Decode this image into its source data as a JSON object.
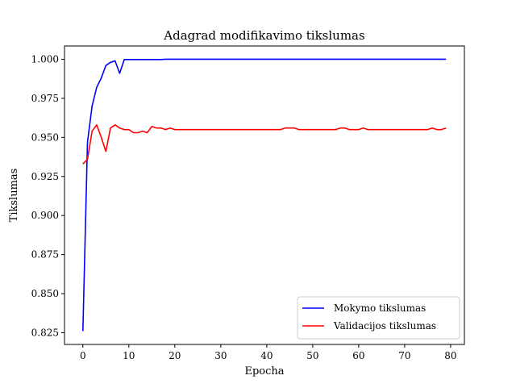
{
  "chart_data": {
    "type": "line",
    "title": "Adagrad modifikavimo tikslumas",
    "xlabel": "Epocha",
    "ylabel": "Tikslumas",
    "xlim": [
      -4,
      83
    ],
    "ylim": [
      0.8175,
      1.0085
    ],
    "xticks": [
      0,
      10,
      20,
      30,
      40,
      50,
      60,
      70,
      80
    ],
    "yticks": [
      0.825,
      0.85,
      0.875,
      0.9,
      0.925,
      0.95,
      0.975,
      1.0
    ],
    "ytick_labels": [
      "0.825",
      "0.850",
      "0.875",
      "0.900",
      "0.925",
      "0.950",
      "0.975",
      "1.000"
    ],
    "legend_position": "lower right",
    "grid": false,
    "series": [
      {
        "name": "Mokymo tikslumas",
        "color": "#0000ff",
        "x": [
          0,
          1,
          2,
          3,
          4,
          5,
          6,
          7,
          8,
          9,
          10,
          11,
          12,
          13,
          14,
          15,
          16,
          17,
          18,
          19,
          20,
          21,
          22,
          23,
          24,
          25,
          26,
          27,
          28,
          29,
          30,
          31,
          32,
          33,
          34,
          35,
          36,
          37,
          38,
          39,
          40,
          41,
          42,
          43,
          44,
          45,
          46,
          47,
          48,
          49,
          50,
          51,
          52,
          53,
          54,
          55,
          56,
          57,
          58,
          59,
          60,
          61,
          62,
          63,
          64,
          65,
          66,
          67,
          68,
          69,
          70,
          71,
          72,
          73,
          74,
          75,
          76,
          77,
          78,
          79
        ],
        "y": [
          0.826,
          0.947,
          0.97,
          0.982,
          0.988,
          0.996,
          0.998,
          0.999,
          0.991,
          0.9998,
          0.9998,
          0.9998,
          0.9998,
          0.9998,
          0.9998,
          0.9998,
          0.9998,
          0.9998,
          1.0,
          1.0,
          1.0,
          1.0,
          1.0,
          1.0,
          1.0,
          1.0,
          1.0,
          1.0,
          1.0,
          1.0,
          1.0,
          1.0,
          1.0,
          1.0,
          1.0,
          1.0,
          1.0,
          1.0,
          1.0,
          1.0,
          1.0,
          1.0,
          1.0,
          1.0,
          1.0,
          1.0,
          1.0,
          1.0,
          1.0,
          1.0,
          1.0,
          1.0,
          1.0,
          1.0,
          1.0,
          1.0,
          1.0,
          1.0,
          1.0,
          1.0,
          1.0,
          1.0,
          1.0,
          1.0,
          1.0,
          1.0,
          1.0,
          1.0,
          1.0,
          1.0,
          1.0,
          1.0,
          1.0,
          1.0,
          1.0,
          1.0,
          1.0,
          1.0,
          1.0,
          1.0
        ]
      },
      {
        "name": "Validacijos tikslumas",
        "color": "#ff0000",
        "x": [
          0,
          1,
          2,
          3,
          4,
          5,
          6,
          7,
          8,
          9,
          10,
          11,
          12,
          13,
          14,
          15,
          16,
          17,
          18,
          19,
          20,
          21,
          22,
          23,
          24,
          25,
          26,
          27,
          28,
          29,
          30,
          31,
          32,
          33,
          34,
          35,
          36,
          37,
          38,
          39,
          40,
          41,
          42,
          43,
          44,
          45,
          46,
          47,
          48,
          49,
          50,
          51,
          52,
          53,
          54,
          55,
          56,
          57,
          58,
          59,
          60,
          61,
          62,
          63,
          64,
          65,
          66,
          67,
          68,
          69,
          70,
          71,
          72,
          73,
          74,
          75,
          76,
          77,
          78,
          79
        ],
        "y": [
          0.933,
          0.936,
          0.954,
          0.958,
          0.95,
          0.941,
          0.956,
          0.958,
          0.956,
          0.955,
          0.955,
          0.953,
          0.953,
          0.954,
          0.953,
          0.957,
          0.956,
          0.956,
          0.955,
          0.956,
          0.955,
          0.955,
          0.955,
          0.955,
          0.955,
          0.955,
          0.955,
          0.955,
          0.955,
          0.955,
          0.955,
          0.955,
          0.955,
          0.955,
          0.955,
          0.955,
          0.955,
          0.955,
          0.955,
          0.955,
          0.955,
          0.955,
          0.955,
          0.955,
          0.956,
          0.956,
          0.956,
          0.955,
          0.955,
          0.955,
          0.955,
          0.955,
          0.955,
          0.955,
          0.955,
          0.955,
          0.956,
          0.956,
          0.955,
          0.955,
          0.955,
          0.956,
          0.955,
          0.955,
          0.955,
          0.955,
          0.955,
          0.955,
          0.955,
          0.955,
          0.955,
          0.955,
          0.955,
          0.955,
          0.955,
          0.955,
          0.956,
          0.955,
          0.955,
          0.956
        ]
      }
    ]
  }
}
